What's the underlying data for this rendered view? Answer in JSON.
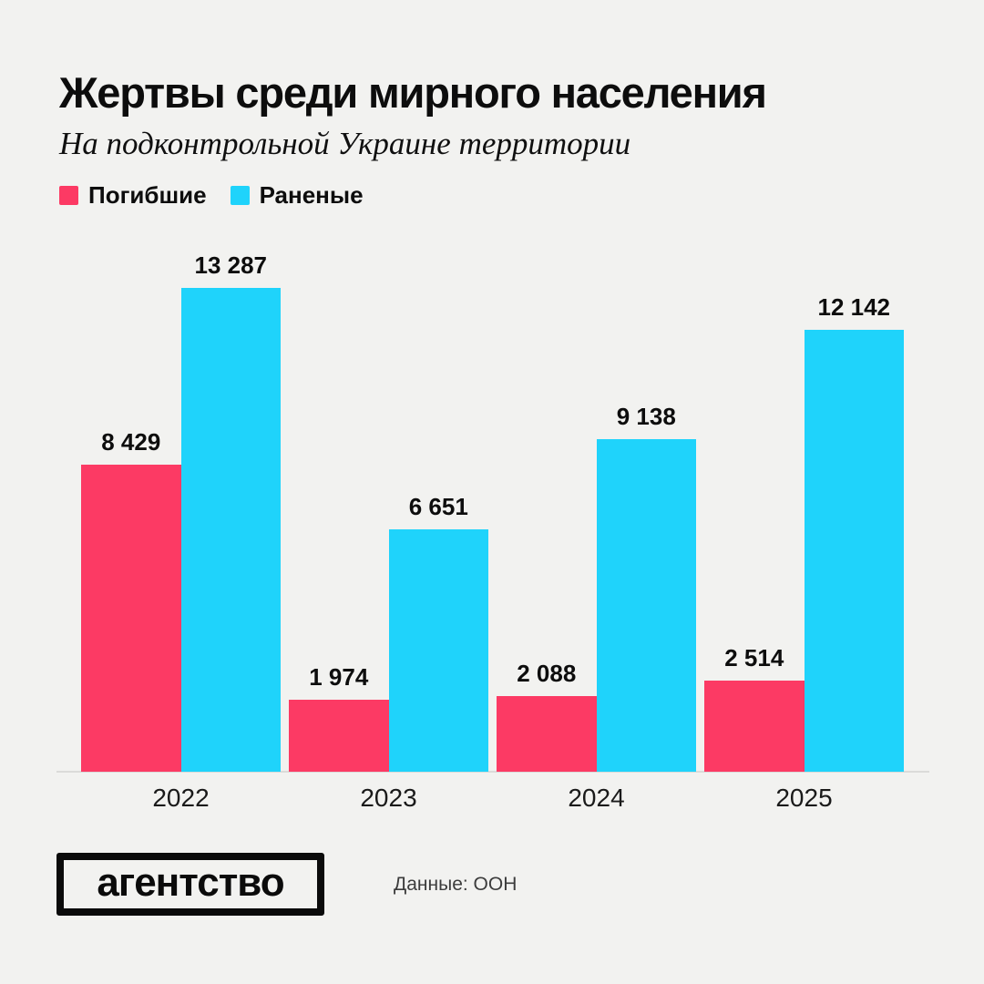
{
  "page": {
    "background": "#F2F2F0"
  },
  "header": {
    "title": "Жертвы среди мирного населения",
    "subtitle": "На подконтрольной Украине территории"
  },
  "legend": {
    "items": [
      {
        "label": "Погибшие",
        "color": "#FC3A64"
      },
      {
        "label": "Раненые",
        "color": "#1FD3FB"
      }
    ]
  },
  "chart_data": {
    "type": "bar",
    "categories": [
      "2022",
      "2023",
      "2024",
      "2025"
    ],
    "series": [
      {
        "name": "Погибшие",
        "color": "#FC3A64",
        "values": [
          8429,
          1974,
          2088,
          2514
        ],
        "labels": [
          "8 429",
          "1 974",
          "2 088",
          "2 514"
        ]
      },
      {
        "name": "Раненые",
        "color": "#1FD3FB",
        "values": [
          13287,
          6651,
          9138,
          12142
        ],
        "labels": [
          "13 287",
          "6 651",
          "9 138",
          "12 142"
        ]
      }
    ],
    "ylim": [
      0,
      13287
    ],
    "grid": false,
    "value_labels": true,
    "legend_position": "top-left",
    "xlabel": "",
    "ylabel": ""
  },
  "footer": {
    "logo_text": "агентство",
    "source": "Данные: ООН"
  }
}
